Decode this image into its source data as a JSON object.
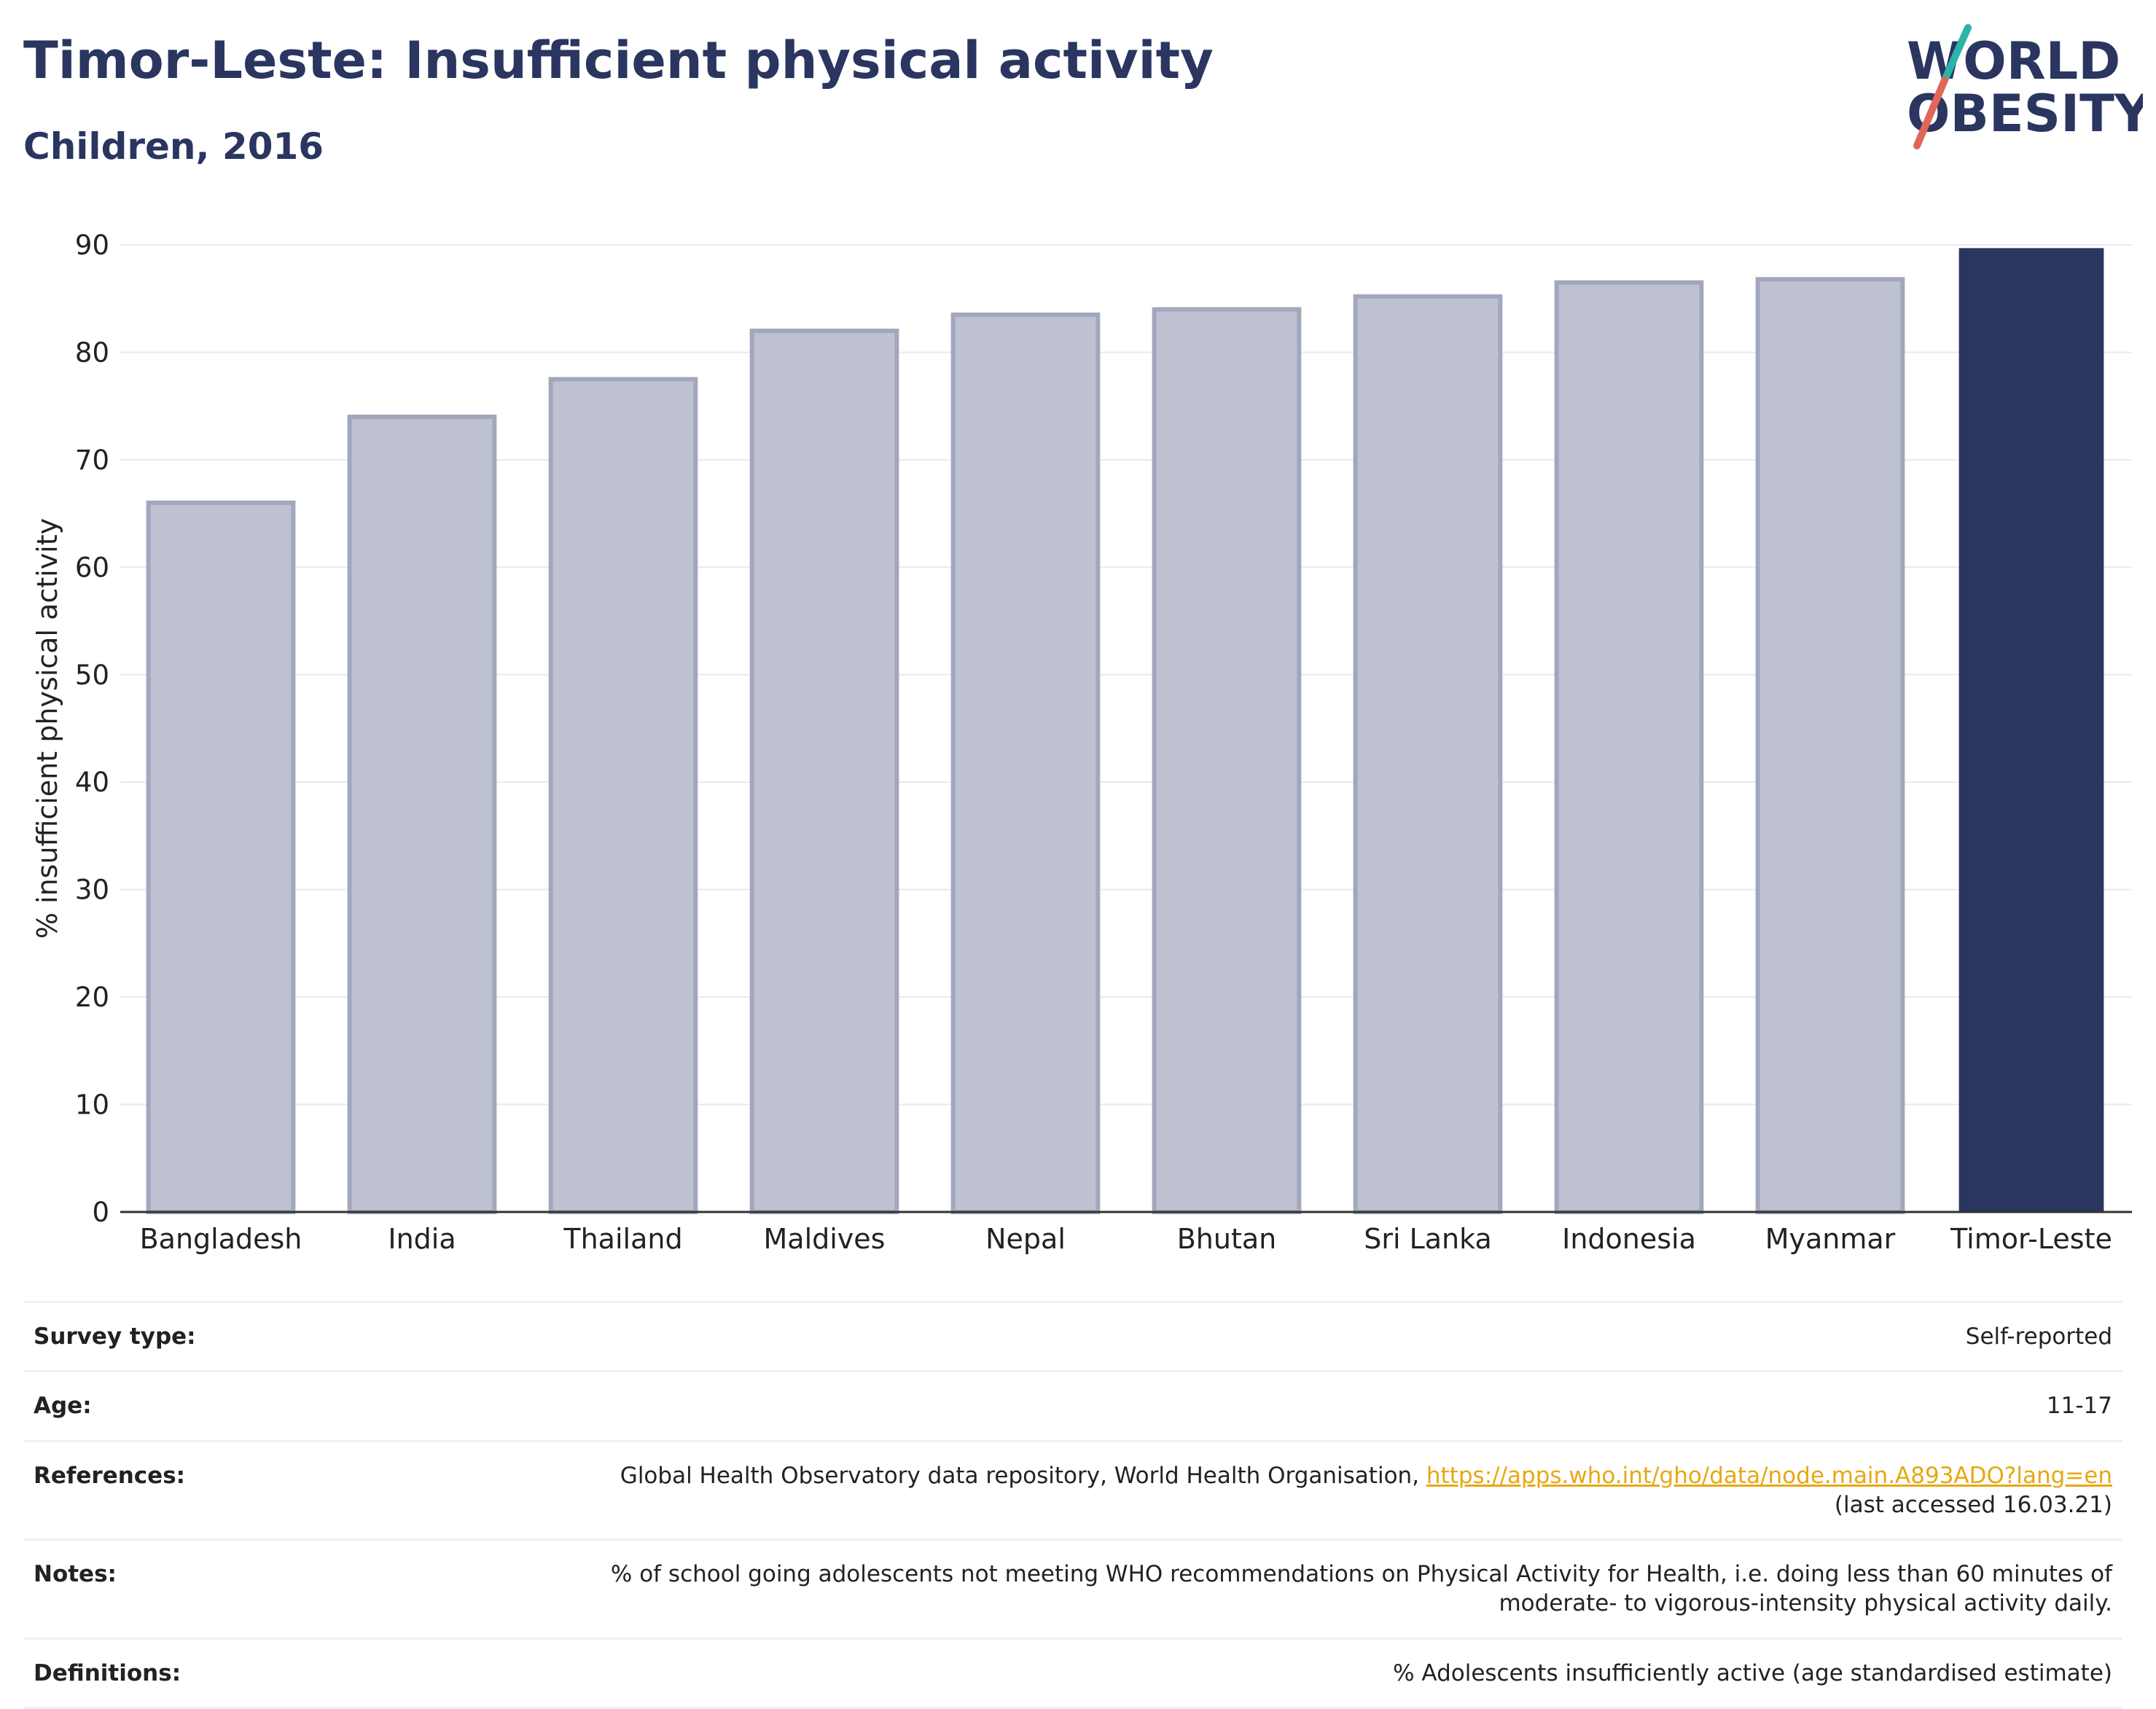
{
  "header": {
    "title": "Timor-Leste: Insufficient physical activity",
    "subtitle": "Children, 2016"
  },
  "logo": {
    "line1": "WORLD",
    "line2": "OBESITY",
    "slash_top_color": "#2bb3a8",
    "slash_bottom_color": "#e0665a"
  },
  "colors": {
    "bar_default": "#bec1cf",
    "bar_default_border": "#a2a7bd",
    "bar_highlight": "#2a3560",
    "text_dark": "#2a3560",
    "link": "#e8a712"
  },
  "chart_data": {
    "type": "bar",
    "categories": [
      "Bangladesh",
      "India",
      "Thailand",
      "Maldives",
      "Nepal",
      "Bhutan",
      "Sri Lanka",
      "Indonesia",
      "Myanmar",
      "Timor-Leste"
    ],
    "values": [
      66,
      74,
      77.5,
      82,
      83.5,
      84,
      85.2,
      86.5,
      86.8,
      89.7
    ],
    "highlight": "Timor-Leste",
    "ylabel": "% insufficient physical activity",
    "ylim": [
      0,
      90
    ],
    "yticks": [
      0,
      10,
      20,
      30,
      40,
      50,
      60,
      70,
      80,
      90
    ],
    "grid": true
  },
  "info": {
    "survey_type": {
      "label": "Survey type:",
      "value": "Self-reported"
    },
    "age": {
      "label": "Age:",
      "value": "11-17"
    },
    "references": {
      "label": "References:",
      "text": "Global Health Observatory data repository, World Health Organisation, ",
      "link": "https://apps.who.int/gho/data/node.main.A893ADO?lang=en",
      "accessed": "(last accessed 16.03.21)"
    },
    "notes": {
      "label": "Notes:",
      "line1": "% of school going adolescents not meeting WHO recommendations on Physical Activity for Health, i.e. doing less than 60 minutes of",
      "line2": "moderate- to vigorous-intensity physical activity daily."
    },
    "definitions": {
      "label": "Definitions:",
      "value": "% Adolescents insufficiently active (age standardised estimate)"
    }
  }
}
